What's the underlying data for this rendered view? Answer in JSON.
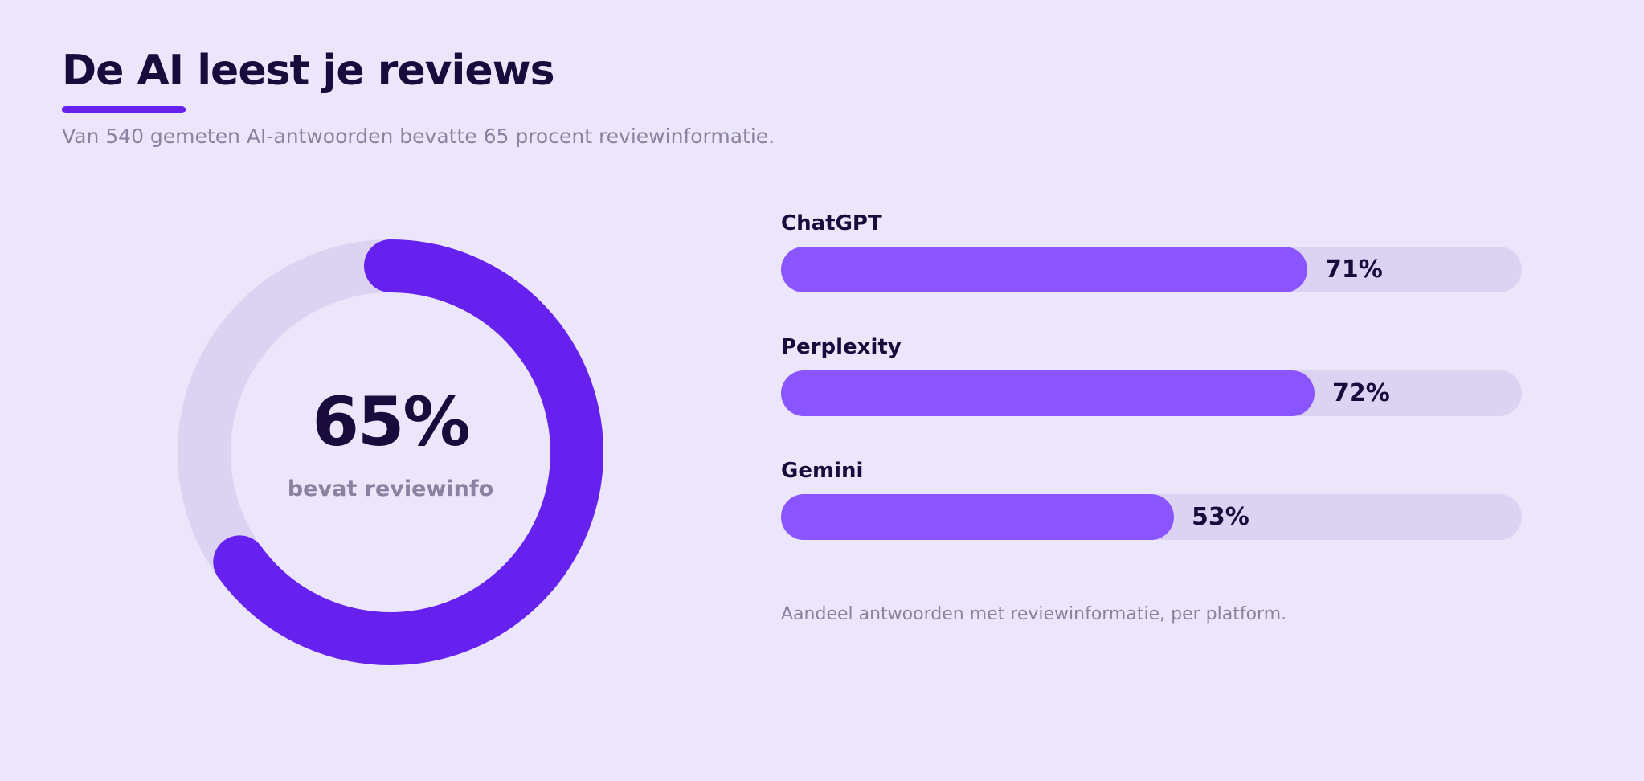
{
  "header": {
    "title": "De AI leest je reviews",
    "subtitle": "Van 540 gemeten AI-antwoorden bevatte 65 procent reviewinformatie."
  },
  "colors": {
    "background": "#ebe6fa",
    "accent": "#6621ee",
    "bar_fill": "#8a55ff",
    "track": "#dcd3f2",
    "text_dark": "#1a0b3d",
    "text_muted": "#8a82a0"
  },
  "chart_data": [
    {
      "type": "pie",
      "variant": "donut",
      "value": 65,
      "max": 100,
      "value_label": "65%",
      "label": "bevat reviewinfo"
    },
    {
      "type": "bar",
      "orientation": "horizontal",
      "categories": [
        "ChatGPT",
        "Perplexity",
        "Gemini"
      ],
      "values": [
        71,
        72,
        53
      ],
      "value_labels": [
        "71%",
        "72%",
        "53%"
      ],
      "xlim": [
        0,
        100
      ],
      "grid": false,
      "footnote": "Aandeel antwoorden met reviewinformatie, per platform."
    }
  ]
}
